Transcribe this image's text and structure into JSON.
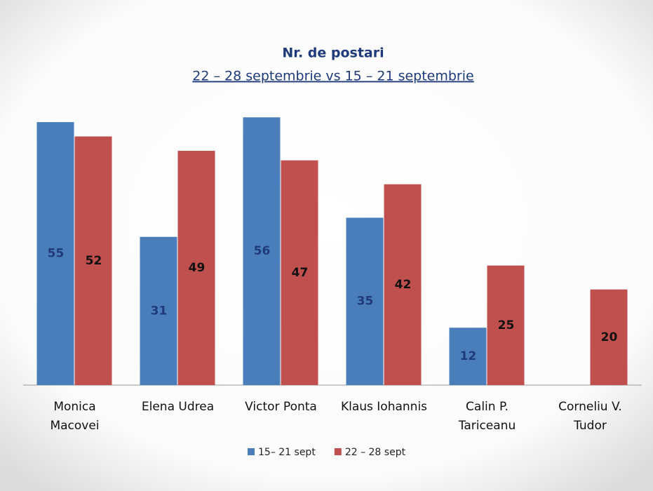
{
  "chart_data": {
    "type": "bar",
    "title": "Nr. de postari",
    "subtitle": "22 – 28 septembrie  vs  15 – 21 septembrie",
    "categories": [
      [
        "Monica",
        "Macovei"
      ],
      [
        "Elena Udrea"
      ],
      [
        "Victor Ponta"
      ],
      [
        "Klaus Iohannis"
      ],
      [
        "Calin P.",
        "Tariceanu"
      ],
      [
        "Corneliu V.",
        "Tudor"
      ]
    ],
    "series": [
      {
        "name": "15– 21 sept",
        "color": "#4a7ebb",
        "label_color": "#1f3a7a",
        "values": [
          55,
          31,
          56,
          35,
          12,
          null
        ]
      },
      {
        "name": "22 – 28 sept",
        "color": "#c0504d",
        "label_color": "#111111",
        "values": [
          52,
          49,
          47,
          42,
          25,
          20
        ]
      }
    ],
    "ylim": [
      0,
      60
    ]
  }
}
